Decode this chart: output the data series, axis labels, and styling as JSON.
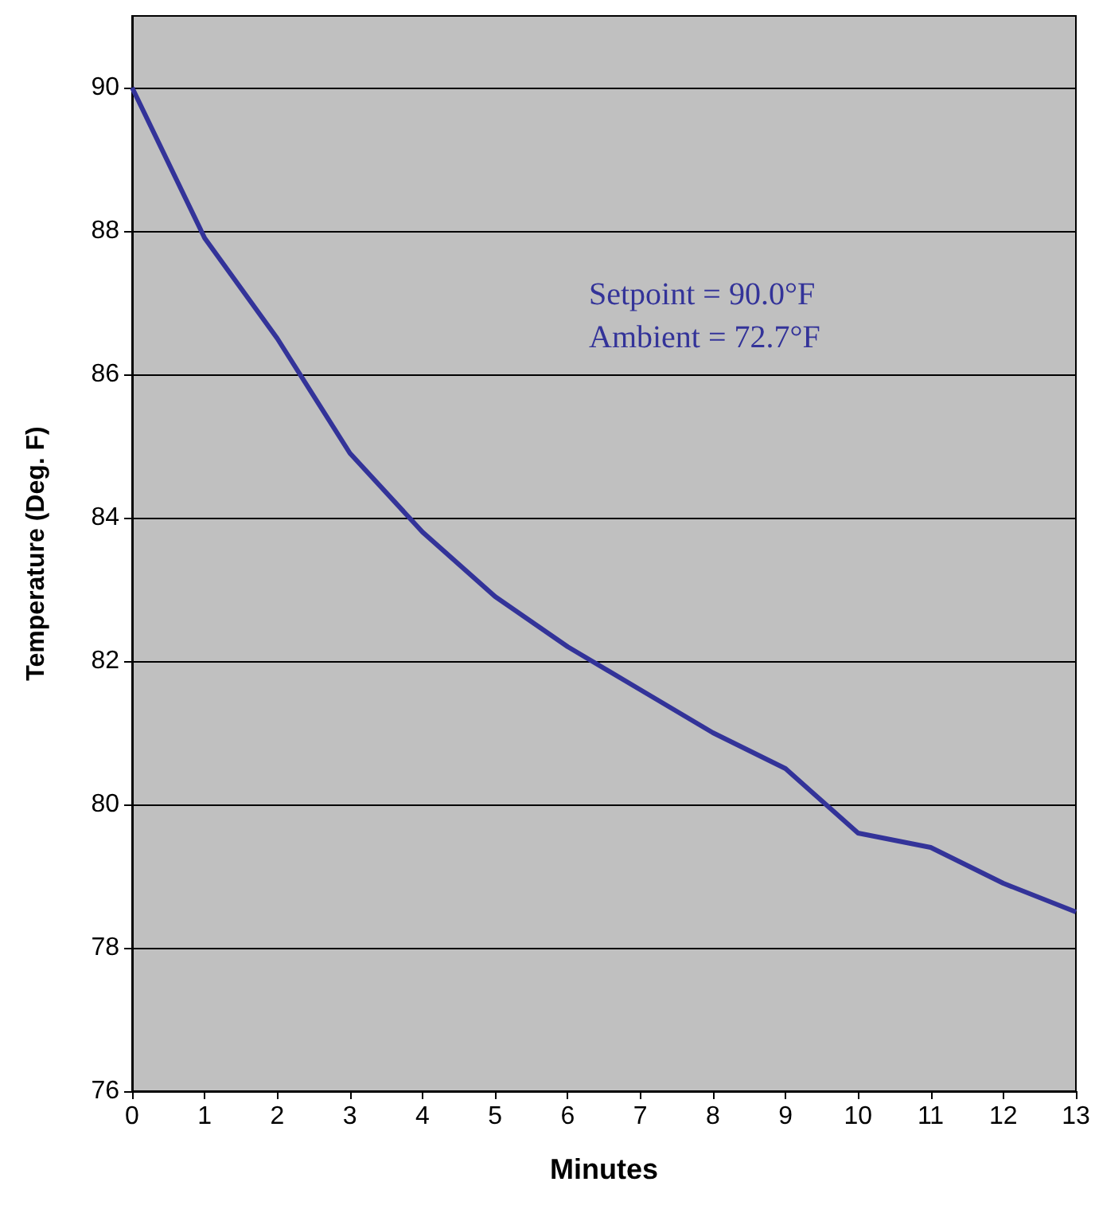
{
  "chart_data": {
    "type": "line",
    "xlabel": "Minutes",
    "ylabel": "Temperature (Deg. F)",
    "x": [
      0,
      1,
      2,
      3,
      4,
      5,
      6,
      7,
      8,
      9,
      10,
      11,
      12,
      13
    ],
    "series": [
      {
        "color": "#333399",
        "values": [
          90,
          87.9,
          86.5,
          84.9,
          83.8,
          82.9,
          82.2,
          81.6,
          81.0,
          80.5,
          79.6,
          79.4,
          78.9,
          78.5
        ]
      }
    ],
    "xlim": [
      0,
      13
    ],
    "xticks": [
      0,
      1,
      2,
      3,
      4,
      5,
      6,
      7,
      8,
      9,
      10,
      11,
      12,
      13
    ],
    "ylim": [
      76,
      91
    ],
    "yticks": [
      76,
      78,
      80,
      82,
      84,
      86,
      88,
      90
    ],
    "annotations": [
      "Setpoint = 90.0°F",
      "Ambient = 72.7°F"
    ],
    "grid": "y",
    "marker": "none",
    "line_style": "solid"
  }
}
